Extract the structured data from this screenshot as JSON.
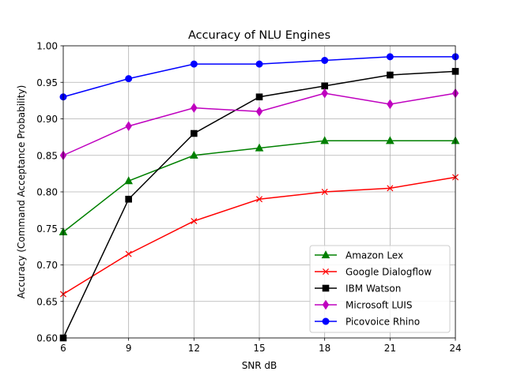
{
  "chart_data": {
    "type": "line",
    "title": "Accuracy of NLU Engines",
    "xlabel": "SNR dB",
    "ylabel": "Accuracy (Command Acceptance Probability)",
    "x": [
      6,
      9,
      12,
      15,
      18,
      21,
      24
    ],
    "xlim": [
      6,
      24
    ],
    "ylim": [
      0.6,
      1.0
    ],
    "xticks": [
      "6",
      "9",
      "12",
      "15",
      "18",
      "21",
      "24"
    ],
    "yticks": [
      "0.60",
      "0.65",
      "0.70",
      "0.75",
      "0.80",
      "0.85",
      "0.90",
      "0.95",
      "1.00"
    ],
    "grid": true,
    "legend_position": "bottom-right",
    "series": [
      {
        "name": "Amazon Lex",
        "color": "#008000",
        "marker": "triangle",
        "values": [
          0.745,
          0.815,
          0.85,
          0.86,
          0.87,
          0.87,
          0.87
        ]
      },
      {
        "name": "Google Dialogflow",
        "color": "#ff0000",
        "marker": "x",
        "values": [
          0.66,
          0.715,
          0.76,
          0.79,
          0.8,
          0.805,
          0.82
        ]
      },
      {
        "name": "IBM Watson",
        "color": "#000000",
        "marker": "square",
        "values": [
          0.6,
          0.79,
          0.88,
          0.93,
          0.945,
          0.96,
          0.965
        ]
      },
      {
        "name": "Microsoft LUIS",
        "color": "#bf00bf",
        "marker": "diamond",
        "values": [
          0.85,
          0.89,
          0.915,
          0.91,
          0.935,
          0.92,
          0.935
        ]
      },
      {
        "name": "Picovoice Rhino",
        "color": "#0000ff",
        "marker": "circle",
        "values": [
          0.93,
          0.955,
          0.975,
          0.975,
          0.98,
          0.985,
          0.985
        ]
      }
    ]
  }
}
